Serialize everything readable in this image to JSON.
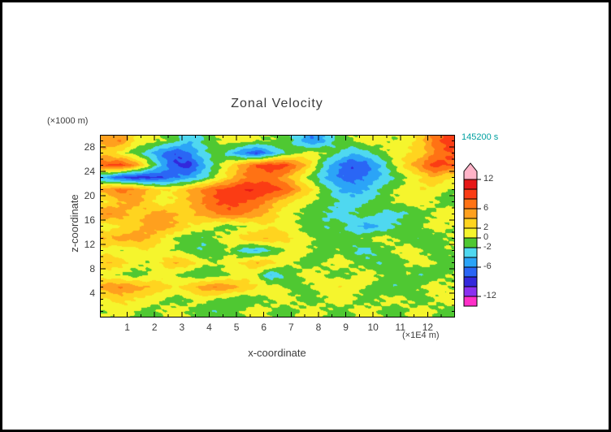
{
  "title": "Zonal Velocity",
  "timestamp": "145200 s",
  "timestamp_color": "#00a0a0",
  "frame_color": "#000000",
  "axes": {
    "x_label": "x-coordinate",
    "x_unit": "(×1E4 m)",
    "y_label": "z-coordinate",
    "y_unit": "(×1000 m)",
    "x_ticks": [
      1,
      2,
      3,
      4,
      5,
      6,
      7,
      8,
      9,
      10,
      11,
      12
    ],
    "y_ticks": [
      4,
      8,
      12,
      16,
      20,
      24,
      28
    ],
    "x_range": [
      0,
      13
    ],
    "y_range": [
      0,
      30
    ]
  },
  "colorbar": {
    "labels": [
      12,
      6,
      2,
      0,
      -2,
      -6,
      -12
    ],
    "arrow_color": "#ffb4c8"
  },
  "chart_data": {
    "type": "heatmap",
    "title": "Zonal Velocity",
    "xlabel": "x-coordinate (×1E4 m)",
    "ylabel": "z-coordinate (×1000 m)",
    "time_label": "145200 s",
    "x_range": [
      0,
      13
    ],
    "z_range": [
      0,
      30
    ],
    "level_step": 2,
    "thresholds": [
      -12,
      -10,
      -8,
      -6,
      -4,
      -2,
      0,
      2,
      4,
      6,
      8,
      10,
      12
    ],
    "colors": [
      "#ff2fc8",
      "#8a30f0",
      "#3328dc",
      "#2a66f5",
      "#2ba4f7",
      "#4fd8f0",
      "#4fc832",
      "#f5f52d",
      "#ffd41f",
      "#ffa01e",
      "#ff7214",
      "#fb3c14",
      "#e61717",
      "#ffb4c8"
    ],
    "col_x_start": 0.25,
    "col_x_step": 0.5,
    "row_z_start": 29,
    "row_z_step": -2,
    "values": [
      [
        5,
        6,
        2,
        1,
        0,
        -1,
        -4,
        -2,
        0,
        1,
        1,
        0,
        0,
        -1,
        -3,
        -6,
        -4,
        -1,
        0,
        1,
        1,
        0,
        1,
        3,
        7,
        9
      ],
      [
        3,
        1,
        -1,
        -3,
        -6,
        -8,
        -6,
        -3,
        -1,
        -3,
        -6,
        -8,
        -5,
        -2,
        0,
        1,
        0,
        -2,
        -4,
        -3,
        -1,
        1,
        2,
        3,
        6,
        8
      ],
      [
        8,
        9,
        6,
        1,
        -4,
        -8,
        -9,
        -5,
        -1,
        2,
        5,
        8,
        9,
        9,
        6,
        2,
        -3,
        -6,
        -8,
        -7,
        -4,
        0,
        3,
        6,
        9,
        8
      ],
      [
        -5,
        -8,
        -9,
        -9,
        -8,
        -6,
        -5,
        -3,
        0,
        3,
        6,
        7,
        7,
        5,
        2,
        -1,
        -4,
        -6,
        -7,
        -6,
        -4,
        -2,
        0,
        2,
        4,
        2
      ],
      [
        5,
        7,
        6,
        4,
        2,
        2,
        4,
        6,
        8,
        9,
        10,
        10,
        9,
        8,
        5,
        2,
        -1,
        -4,
        -5,
        -4,
        -2,
        0,
        1,
        2,
        1,
        0
      ],
      [
        2,
        4,
        5,
        3,
        1,
        2,
        4,
        6,
        8,
        9,
        8,
        7,
        5,
        3,
        1,
        0,
        -1,
        -2,
        -3,
        -2,
        -1,
        0,
        1,
        1,
        0,
        -1
      ],
      [
        6,
        5,
        3,
        4,
        5,
        4,
        3,
        5,
        6,
        7,
        6,
        5,
        3,
        1,
        0,
        -1,
        -2,
        -3,
        -2,
        -1,
        -2,
        -3,
        -2,
        -1,
        0,
        1
      ],
      [
        1,
        2,
        3,
        5,
        5,
        4,
        2,
        1,
        0,
        -1,
        0,
        1,
        2,
        1,
        0,
        -1,
        -2,
        -1,
        -3,
        -5,
        -4,
        -2,
        -1,
        0,
        1,
        0
      ],
      [
        4,
        5,
        5,
        4,
        2,
        0,
        -1,
        -2,
        0,
        1,
        3,
        4,
        4,
        3,
        1,
        0,
        -1,
        -2,
        -1,
        0,
        1,
        0,
        -1,
        -2,
        -1,
        0
      ],
      [
        1,
        0,
        1,
        2,
        1,
        0,
        -1,
        -2,
        -1,
        0,
        -3,
        -4,
        -2,
        0,
        1,
        0,
        -1,
        0,
        -2,
        -3,
        -1,
        0,
        1,
        0,
        -1,
        0
      ],
      [
        4,
        3,
        1,
        0,
        2,
        4,
        3,
        1,
        0,
        1,
        2,
        4,
        3,
        1,
        0,
        -1,
        0,
        1,
        0,
        -1,
        -2,
        -1,
        0,
        1,
        0,
        -1
      ],
      [
        1,
        0,
        -1,
        0,
        1,
        0,
        -1,
        -2,
        -1,
        0,
        1,
        0,
        -4,
        -2,
        0,
        1,
        0,
        -1,
        0,
        1,
        0,
        -1,
        0,
        -2,
        -1,
        0
      ],
      [
        5,
        6,
        5,
        4,
        3,
        2,
        3,
        5,
        6,
        5,
        4,
        2,
        1,
        0,
        -1,
        0,
        1,
        2,
        1,
        0,
        -1,
        -2,
        -1,
        0,
        1,
        0
      ],
      [
        2,
        3,
        2,
        1,
        0,
        -1,
        0,
        1,
        0,
        -1,
        -2,
        -1,
        0,
        1,
        0,
        -1,
        0,
        1,
        0,
        -1,
        0,
        1,
        0,
        -1,
        0,
        1
      ],
      [
        0,
        1,
        0,
        -1,
        0,
        1,
        0,
        -1,
        -2,
        -1,
        0,
        1,
        0,
        -1,
        0,
        1,
        0,
        -1,
        0,
        1,
        0,
        -1,
        0,
        1,
        0,
        -1
      ]
    ]
  }
}
